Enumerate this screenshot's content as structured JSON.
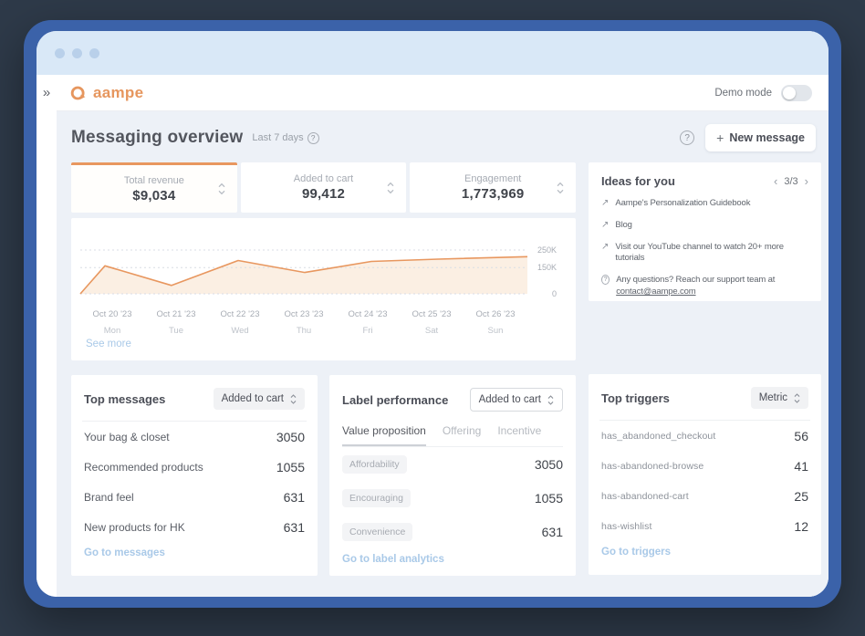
{
  "header": {
    "logo_text": "aampe",
    "demo_mode_label": "Demo mode",
    "collapse_icon": "chevrons-right"
  },
  "page": {
    "title": "Messaging overview",
    "period_label": "Last 7 days",
    "new_message_label": "New message",
    "new_message_plus": "+"
  },
  "stats": [
    {
      "label": "Total revenue",
      "value": "$9,034",
      "active": true
    },
    {
      "label": "Added to cart",
      "value": "99,412",
      "active": false
    },
    {
      "label": "Engagement",
      "value": "1,773,969",
      "active": false
    }
  ],
  "chart_data": {
    "type": "area",
    "title": "Total revenue, last 7 days",
    "x": [
      "Oct 20 '23",
      "Oct 21 '23",
      "Oct 22 '23",
      "Oct 23 '23",
      "Oct 24 '23",
      "Oct 25 '23",
      "Oct 26 '23"
    ],
    "x_sub": [
      "Mon",
      "Tue",
      "Wed",
      "Thu",
      "Fri",
      "Sat",
      "Sun"
    ],
    "values": [
      160000,
      48000,
      190000,
      122000,
      185000,
      198000,
      212000
    ],
    "start_value": 0,
    "ylim": [
      0,
      250000
    ],
    "yticks": [
      {
        "label": "250K",
        "value": 250000
      },
      {
        "label": "150K",
        "value": 150000
      },
      {
        "label": "0",
        "value": 0
      }
    ],
    "grid": "dotted-horizontal",
    "legend": "none",
    "line_color": "#E8975F",
    "fill_color": "#FBEFE3",
    "see_more_label": "See more"
  },
  "ideas": {
    "title": "Ideas for you",
    "pagination": "3/3",
    "prev_icon": "chevron-left",
    "next_icon": "chevron-right",
    "items": [
      {
        "icon": "external-link-icon",
        "text": "Aampe's Personalization Guidebook"
      },
      {
        "icon": "external-link-icon",
        "text": "Blog"
      },
      {
        "icon": "external-link-icon",
        "text": "Visit our YouTube channel to watch 20+ more tutorials"
      },
      {
        "icon": "question-icon",
        "text": "Any questions? Reach our support team at",
        "link": "contact@aampe.com"
      }
    ]
  },
  "top_messages": {
    "title": "Top messages",
    "filter_value": "Added to cart",
    "rows": [
      [
        "Your bag & closet",
        "3050"
      ],
      [
        "Recommended products",
        "1055"
      ],
      [
        "Brand feel",
        "631"
      ],
      [
        "New products for HK",
        "631"
      ]
    ],
    "link_label": "Go to messages"
  },
  "label_performance": {
    "title": "Label performance",
    "filter_value": "Added to cart",
    "tabs": [
      "Value proposition",
      "Offering",
      "Incentive"
    ],
    "active_tab": "Value proposition",
    "rows": [
      [
        "Affordability",
        "3050"
      ],
      [
        "Encouraging",
        "1055"
      ],
      [
        "Convenience",
        "631"
      ]
    ],
    "link_label": "Go to label analytics"
  },
  "top_triggers": {
    "title": "Top triggers",
    "filter_value": "Metric",
    "rows": [
      [
        "has_abandoned_checkout",
        "56"
      ],
      [
        "has-abandoned-browse",
        "41"
      ],
      [
        "has-abandoned-cart",
        "25"
      ],
      [
        "has-wishlist",
        "12"
      ]
    ],
    "link_label": "Go to triggers"
  },
  "colors": {
    "accent_orange": "#E8975F",
    "frame_blue": "#3B62A9",
    "outer_background": "#2E3A49",
    "titlebar_blue": "#D9E8F7",
    "page_background": "#EDF1F7",
    "link_blue": "#A9C9E8"
  }
}
